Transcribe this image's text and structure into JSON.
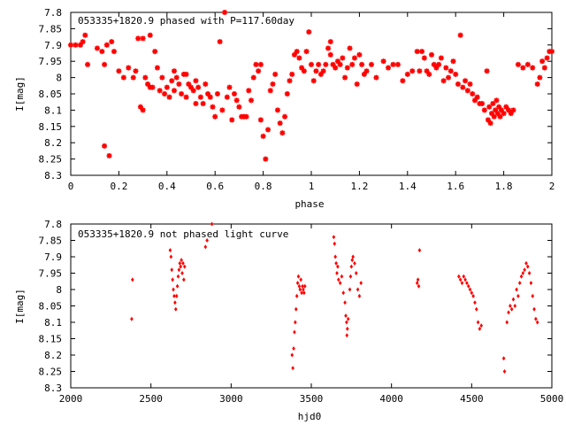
{
  "chart_data": [
    {
      "type": "scatter",
      "title": "053335+1820.9 phased with P=117.60day",
      "xlabel": "phase",
      "ylabel": "I[mag]",
      "xlim": [
        0,
        2
      ],
      "ylim": [
        8.3,
        7.8
      ],
      "y_reversed": true,
      "xticks": [
        "0",
        "0.2",
        "0.4",
        "0.6",
        "0.8",
        "1",
        "1.2",
        "1.4",
        "1.6",
        "1.8",
        "2"
      ],
      "yticks": [
        "7.8",
        "7.85",
        "7.9",
        "7.95",
        "8",
        "8.05",
        "8.1",
        "8.15",
        "8.2",
        "8.25",
        "8.3"
      ],
      "grid": false,
      "marker_color": "#ff0000",
      "points": [
        [
          0.0,
          7.9
        ],
        [
          0.02,
          7.9
        ],
        [
          0.04,
          7.9
        ],
        [
          0.05,
          7.89
        ],
        [
          0.06,
          7.87
        ],
        [
          0.07,
          7.96
        ],
        [
          0.11,
          7.91
        ],
        [
          0.13,
          7.92
        ],
        [
          0.14,
          7.96
        ],
        [
          0.14,
          8.21
        ],
        [
          0.15,
          7.9
        ],
        [
          0.16,
          8.24
        ],
        [
          0.17,
          7.89
        ],
        [
          0.18,
          7.92
        ],
        [
          0.2,
          7.98
        ],
        [
          0.22,
          8.0
        ],
        [
          0.24,
          7.97
        ],
        [
          0.26,
          8.0
        ],
        [
          0.27,
          7.98
        ],
        [
          0.28,
          7.88
        ],
        [
          0.29,
          8.09
        ],
        [
          0.3,
          8.1
        ],
        [
          0.3,
          7.88
        ],
        [
          0.31,
          8.0
        ],
        [
          0.32,
          8.02
        ],
        [
          0.33,
          8.03
        ],
        [
          0.33,
          7.87
        ],
        [
          0.34,
          8.03
        ],
        [
          0.35,
          7.92
        ],
        [
          0.36,
          7.97
        ],
        [
          0.37,
          8.04
        ],
        [
          0.38,
          8.0
        ],
        [
          0.39,
          8.05
        ],
        [
          0.4,
          8.03
        ],
        [
          0.41,
          8.06
        ],
        [
          0.42,
          8.01
        ],
        [
          0.43,
          8.04
        ],
        [
          0.43,
          7.98
        ],
        [
          0.44,
          8.0
        ],
        [
          0.45,
          8.02
        ],
        [
          0.46,
          8.05
        ],
        [
          0.47,
          7.99
        ],
        [
          0.48,
          7.99
        ],
        [
          0.48,
          8.06
        ],
        [
          0.49,
          8.02
        ],
        [
          0.5,
          8.03
        ],
        [
          0.51,
          8.04
        ],
        [
          0.52,
          8.01
        ],
        [
          0.52,
          8.08
        ],
        [
          0.53,
          8.03
        ],
        [
          0.54,
          8.06
        ],
        [
          0.55,
          8.08
        ],
        [
          0.56,
          8.02
        ],
        [
          0.57,
          8.05
        ],
        [
          0.58,
          8.06
        ],
        [
          0.59,
          8.09
        ],
        [
          0.6,
          8.12
        ],
        [
          0.61,
          8.05
        ],
        [
          0.62,
          7.89
        ],
        [
          0.63,
          8.1
        ],
        [
          0.64,
          7.8
        ],
        [
          0.65,
          8.06
        ],
        [
          0.66,
          8.03
        ],
        [
          0.67,
          8.13
        ],
        [
          0.68,
          8.05
        ],
        [
          0.69,
          8.07
        ],
        [
          0.7,
          8.09
        ],
        [
          0.71,
          8.12
        ],
        [
          0.72,
          8.12
        ],
        [
          0.73,
          8.12
        ],
        [
          0.74,
          8.04
        ],
        [
          0.75,
          8.07
        ],
        [
          0.76,
          8.0
        ],
        [
          0.77,
          7.96
        ],
        [
          0.78,
          7.98
        ],
        [
          0.79,
          8.13
        ],
        [
          0.79,
          7.96
        ],
        [
          0.8,
          8.18
        ],
        [
          0.81,
          8.25
        ],
        [
          0.82,
          8.16
        ],
        [
          0.83,
          8.04
        ],
        [
          0.84,
          8.02
        ],
        [
          0.85,
          7.99
        ],
        [
          0.86,
          8.1
        ],
        [
          0.87,
          8.14
        ],
        [
          0.88,
          8.17
        ],
        [
          0.89,
          8.12
        ],
        [
          0.9,
          8.05
        ],
        [
          0.91,
          8.01
        ],
        [
          0.92,
          7.99
        ],
        [
          0.93,
          7.93
        ],
        [
          0.94,
          7.92
        ],
        [
          0.95,
          7.94
        ],
        [
          0.96,
          7.97
        ],
        [
          0.97,
          7.98
        ],
        [
          0.98,
          7.92
        ],
        [
          0.99,
          7.86
        ],
        [
          1.0,
          7.96
        ],
        [
          1.01,
          8.01
        ],
        [
          1.02,
          7.98
        ],
        [
          1.03,
          7.96
        ],
        [
          1.04,
          7.99
        ],
        [
          1.05,
          7.98
        ],
        [
          1.06,
          7.96
        ],
        [
          1.07,
          7.91
        ],
        [
          1.08,
          7.89
        ],
        [
          1.08,
          7.93
        ],
        [
          1.09,
          7.96
        ],
        [
          1.1,
          7.97
        ],
        [
          1.11,
          7.95
        ],
        [
          1.12,
          7.96
        ],
        [
          1.13,
          7.94
        ],
        [
          1.14,
          8.0
        ],
        [
          1.15,
          7.97
        ],
        [
          1.16,
          7.91
        ],
        [
          1.17,
          7.96
        ],
        [
          1.18,
          7.94
        ],
        [
          1.19,
          8.02
        ],
        [
          1.2,
          7.93
        ],
        [
          1.21,
          7.96
        ],
        [
          1.22,
          7.99
        ],
        [
          1.23,
          7.98
        ],
        [
          1.25,
          7.96
        ],
        [
          1.27,
          8.0
        ],
        [
          1.3,
          7.95
        ],
        [
          1.32,
          7.97
        ],
        [
          1.34,
          7.96
        ],
        [
          1.36,
          7.96
        ],
        [
          1.38,
          8.01
        ],
        [
          1.4,
          7.99
        ],
        [
          1.42,
          7.98
        ],
        [
          1.44,
          7.92
        ],
        [
          1.45,
          7.98
        ],
        [
          1.46,
          7.92
        ],
        [
          1.47,
          7.94
        ],
        [
          1.48,
          7.98
        ],
        [
          1.49,
          7.99
        ],
        [
          1.5,
          7.93
        ],
        [
          1.51,
          7.96
        ],
        [
          1.52,
          7.97
        ],
        [
          1.53,
          7.96
        ],
        [
          1.54,
          7.94
        ],
        [
          1.55,
          8.01
        ],
        [
          1.56,
          7.97
        ],
        [
          1.57,
          8.0
        ],
        [
          1.58,
          7.98
        ],
        [
          1.59,
          7.95
        ],
        [
          1.6,
          7.99
        ],
        [
          1.61,
          8.02
        ],
        [
          1.62,
          7.87
        ],
        [
          1.63,
          8.03
        ],
        [
          1.64,
          8.01
        ],
        [
          1.65,
          8.04
        ],
        [
          1.66,
          8.02
        ],
        [
          1.67,
          8.05
        ],
        [
          1.68,
          8.07
        ],
        [
          1.69,
          8.06
        ],
        [
          1.7,
          8.08
        ],
        [
          1.71,
          8.08
        ],
        [
          1.72,
          8.1
        ],
        [
          1.73,
          7.98
        ],
        [
          1.735,
          8.13
        ],
        [
          1.74,
          8.09
        ],
        [
          1.745,
          8.14
        ],
        [
          1.75,
          8.11
        ],
        [
          1.755,
          8.08
        ],
        [
          1.76,
          8.12
        ],
        [
          1.765,
          8.1
        ],
        [
          1.77,
          8.07
        ],
        [
          1.775,
          8.11
        ],
        [
          1.78,
          8.09
        ],
        [
          1.785,
          8.12
        ],
        [
          1.79,
          8.1
        ],
        [
          1.8,
          8.11
        ],
        [
          1.81,
          8.09
        ],
        [
          1.82,
          8.1
        ],
        [
          1.83,
          8.11
        ],
        [
          1.84,
          8.1
        ],
        [
          1.86,
          7.96
        ],
        [
          1.88,
          7.97
        ],
        [
          1.9,
          7.96
        ],
        [
          1.92,
          7.97
        ],
        [
          1.94,
          8.02
        ],
        [
          1.95,
          8.0
        ],
        [
          1.96,
          7.95
        ],
        [
          1.97,
          7.97
        ],
        [
          1.98,
          7.94
        ],
        [
          1.99,
          7.92
        ],
        [
          2.0,
          7.92
        ]
      ]
    },
    {
      "type": "scatter",
      "title": "053335+1820.9 not phased light curve",
      "xlabel": "hjd0",
      "ylabel": "I[mag]",
      "xlim": [
        2000,
        5000
      ],
      "ylim": [
        8.3,
        7.8
      ],
      "y_reversed": true,
      "xticks": [
        "2000",
        "2500",
        "3000",
        "3500",
        "4000",
        "4500",
        "5000"
      ],
      "yticks": [
        "7.8",
        "7.85",
        "7.9",
        "7.95",
        "8",
        "8.05",
        "8.1",
        "8.15",
        "8.2",
        "8.25",
        "8.3"
      ],
      "grid": false,
      "marker_color": "#ff0000",
      "points": [
        [
          2380,
          8.09
        ],
        [
          2385,
          7.97
        ],
        [
          2620,
          7.88
        ],
        [
          2625,
          7.9
        ],
        [
          2630,
          7.94
        ],
        [
          2635,
          7.97
        ],
        [
          2640,
          8.0
        ],
        [
          2645,
          8.02
        ],
        [
          2650,
          8.04
        ],
        [
          2655,
          8.06
        ],
        [
          2660,
          8.02
        ],
        [
          2665,
          7.99
        ],
        [
          2670,
          7.96
        ],
        [
          2675,
          7.94
        ],
        [
          2680,
          7.92
        ],
        [
          2685,
          7.93
        ],
        [
          2690,
          7.91
        ],
        [
          2695,
          7.95
        ],
        [
          2700,
          7.92
        ],
        [
          2705,
          7.97
        ],
        [
          2710,
          7.93
        ],
        [
          2840,
          7.87
        ],
        [
          2850,
          7.85
        ],
        [
          2880,
          7.8
        ],
        [
          3380,
          8.2
        ],
        [
          3385,
          8.24
        ],
        [
          3390,
          8.18
        ],
        [
          3395,
          8.13
        ],
        [
          3400,
          8.1
        ],
        [
          3405,
          8.06
        ],
        [
          3410,
          8.02
        ],
        [
          3415,
          7.98
        ],
        [
          3420,
          7.96
        ],
        [
          3425,
          7.99
        ],
        [
          3430,
          8.0
        ],
        [
          3435,
          7.97
        ],
        [
          3440,
          8.01
        ],
        [
          3445,
          7.99
        ],
        [
          3450,
          8.0
        ],
        [
          3455,
          8.01
        ],
        [
          3460,
          7.99
        ],
        [
          3640,
          7.84
        ],
        [
          3645,
          7.86
        ],
        [
          3650,
          7.9
        ],
        [
          3655,
          7.92
        ],
        [
          3660,
          7.95
        ],
        [
          3665,
          7.93
        ],
        [
          3670,
          7.97
        ],
        [
          3680,
          7.98
        ],
        [
          3690,
          7.96
        ],
        [
          3700,
          8.01
        ],
        [
          3710,
          8.04
        ],
        [
          3715,
          8.08
        ],
        [
          3720,
          8.1
        ],
        [
          3722,
          8.14
        ],
        [
          3725,
          8.12
        ],
        [
          3730,
          8.09
        ],
        [
          3740,
          8.0
        ],
        [
          3745,
          7.96
        ],
        [
          3750,
          7.93
        ],
        [
          3755,
          7.91
        ],
        [
          3760,
          7.9
        ],
        [
          3770,
          7.92
        ],
        [
          3780,
          7.95
        ],
        [
          3790,
          8.0
        ],
        [
          3800,
          8.02
        ],
        [
          3810,
          7.98
        ],
        [
          4160,
          7.98
        ],
        [
          4165,
          7.97
        ],
        [
          4170,
          7.99
        ],
        [
          4175,
          7.88
        ],
        [
          4420,
          7.96
        ],
        [
          4430,
          7.97
        ],
        [
          4440,
          7.98
        ],
        [
          4450,
          7.96
        ],
        [
          4460,
          7.97
        ],
        [
          4470,
          7.98
        ],
        [
          4480,
          7.99
        ],
        [
          4490,
          8.0
        ],
        [
          4500,
          8.01
        ],
        [
          4510,
          8.02
        ],
        [
          4520,
          8.04
        ],
        [
          4530,
          8.06
        ],
        [
          4540,
          8.1
        ],
        [
          4550,
          8.12
        ],
        [
          4560,
          8.11
        ],
        [
          4700,
          8.21
        ],
        [
          4705,
          8.25
        ],
        [
          4720,
          8.1
        ],
        [
          4730,
          8.07
        ],
        [
          4740,
          8.05
        ],
        [
          4750,
          8.06
        ],
        [
          4760,
          8.03
        ],
        [
          4770,
          8.05
        ],
        [
          4780,
          8.0
        ],
        [
          4790,
          8.02
        ],
        [
          4800,
          7.98
        ],
        [
          4810,
          7.96
        ],
        [
          4820,
          7.95
        ],
        [
          4830,
          7.94
        ],
        [
          4840,
          7.92
        ],
        [
          4850,
          7.93
        ],
        [
          4860,
          7.95
        ],
        [
          4870,
          7.98
        ],
        [
          4880,
          8.02
        ],
        [
          4890,
          8.06
        ],
        [
          4900,
          8.09
        ],
        [
          4910,
          8.1
        ]
      ]
    }
  ]
}
